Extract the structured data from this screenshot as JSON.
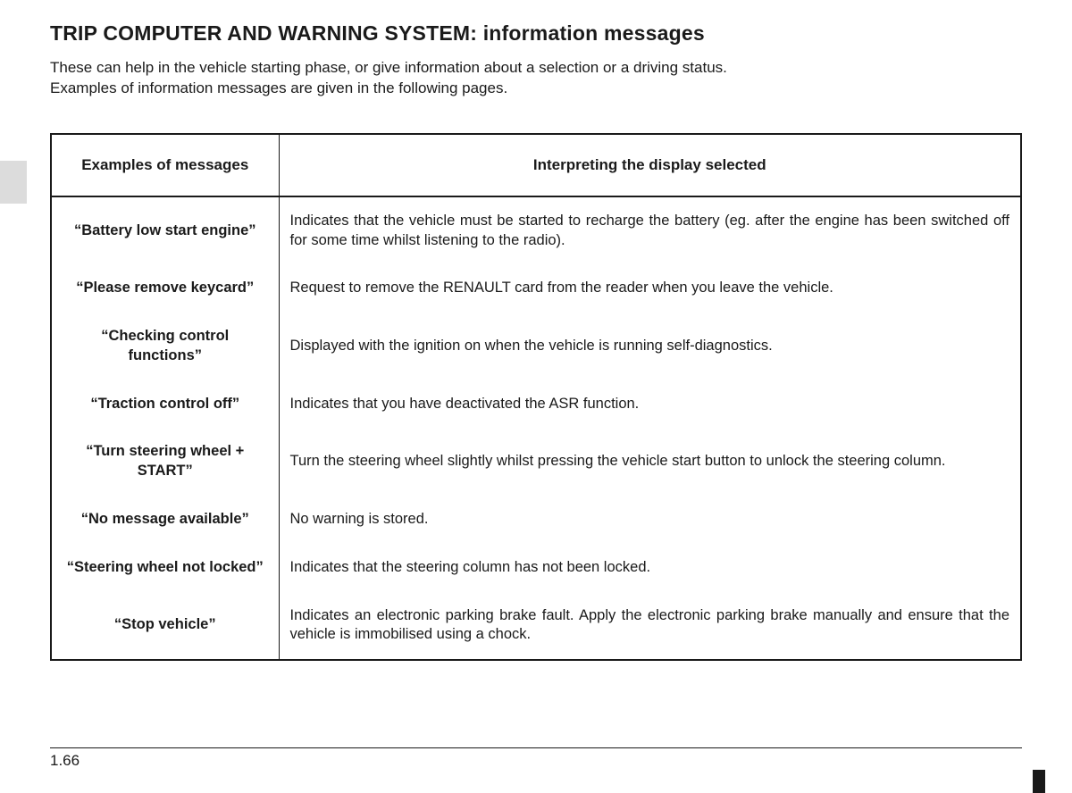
{
  "title": "TRIP COMPUTER AND WARNING SYSTEM: information messages",
  "intro": {
    "line1": "These can help in the vehicle starting phase, or give information about a selection or a driving status.",
    "line2": "Examples of information messages are given in the following pages."
  },
  "table": {
    "header_col1": "Examples of messages",
    "header_col2": "Interpreting the display selected",
    "rows": [
      {
        "message": "“Battery low start engine”",
        "interpretation": "Indicates that the vehicle must be started to recharge the battery (eg. after the engine has been switched off for some time whilst listening to the radio)."
      },
      {
        "message": "“Please remove keycard”",
        "interpretation": "Request to remove the RENAULT card from the reader when you leave the vehicle."
      },
      {
        "message": "“Checking control functions”",
        "interpretation": "Displayed with the ignition on when the vehicle is running self-diagnostics."
      },
      {
        "message": "“Traction control off”",
        "interpretation": "Indicates that you have deactivated the ASR function."
      },
      {
        "message": "“Turn steering wheel + START”",
        "interpretation": "Turn the steering wheel slightly whilst pressing the vehicle start button to unlock the steering column."
      },
      {
        "message": "“No message available”",
        "interpretation": "No warning is stored."
      },
      {
        "message": "“Steering wheel not locked”",
        "interpretation": "Indicates that the steering column has not been locked."
      },
      {
        "message": "“Stop vehicle”",
        "interpretation": "Indicates an electronic parking brake fault. Apply the electronic parking brake manually and ensure that the vehicle is immobilised using a chock."
      }
    ]
  },
  "page_number": "1.66",
  "colors": {
    "text": "#1a1a1a",
    "background": "#ffffff",
    "tab": "#dcdcdc"
  }
}
